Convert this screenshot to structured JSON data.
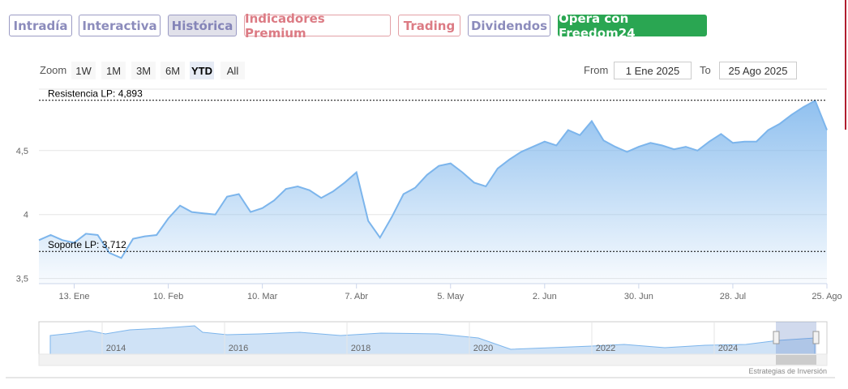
{
  "tabs": [
    "Intradía",
    "Interactiva",
    "Histórica",
    "Indicadores Premium",
    "Trading",
    "Dividendos",
    "Opera con Freedom24"
  ],
  "zoom": {
    "label": "Zoom",
    "buttons": [
      "1W",
      "1M",
      "3M",
      "6M",
      "YTD",
      "All"
    ],
    "selected": "YTD"
  },
  "range": {
    "from_label": "From",
    "from": "1 Ene 2025",
    "to_label": "To",
    "to": "25 Ago 2025"
  },
  "navigator": {
    "years": [
      "2014",
      "2016",
      "2018",
      "2020",
      "2022",
      "2024"
    ]
  },
  "credit": "Estrategias de Inversión",
  "chart_data": {
    "type": "area",
    "categories": [
      null,
      null,
      null,
      "13. Ene",
      null,
      null,
      null,
      null,
      null,
      null,
      null,
      "10. Feb",
      null,
      null,
      null,
      null,
      null,
      null,
      null,
      "10. Mar",
      null,
      null,
      null,
      null,
      null,
      null,
      null,
      "7. Abr",
      null,
      null,
      null,
      null,
      null,
      null,
      null,
      "5. May",
      null,
      null,
      null,
      null,
      null,
      null,
      null,
      "2. Jun",
      null,
      null,
      null,
      null,
      null,
      null,
      null,
      "30. Jun",
      null,
      null,
      null,
      null,
      null,
      null,
      null,
      "28. Jul",
      null,
      null,
      null,
      null,
      null,
      null,
      null,
      "25. Ago"
    ],
    "values": [
      3.8,
      3.84,
      3.8,
      3.78,
      3.85,
      3.84,
      3.7,
      3.66,
      3.81,
      3.83,
      3.84,
      3.97,
      4.07,
      4.02,
      4.01,
      4.0,
      4.14,
      4.16,
      4.02,
      4.05,
      4.11,
      4.2,
      4.22,
      4.19,
      4.13,
      4.18,
      4.25,
      4.33,
      3.95,
      3.82,
      3.98,
      4.16,
      4.21,
      4.31,
      4.38,
      4.4,
      4.33,
      4.25,
      4.22,
      4.36,
      4.43,
      4.49,
      4.53,
      4.57,
      4.54,
      4.66,
      4.62,
      4.73,
      4.58,
      4.53,
      4.49,
      4.53,
      4.56,
      4.54,
      4.51,
      4.53,
      4.5,
      4.57,
      4.63,
      4.56,
      4.57,
      4.57,
      4.66,
      4.71,
      4.78,
      4.84,
      4.89,
      4.66
    ],
    "color": "#7cb5ec",
    "ylim": [
      3.46,
      4.98
    ],
    "yticks": [
      {
        "value": 3.5,
        "label": "3,5"
      },
      {
        "value": 4,
        "label": "4"
      },
      {
        "value": 4.5,
        "label": "4,5"
      }
    ],
    "grid": true,
    "annotations": [
      {
        "label": "Resistencia LP: 4,893",
        "value": 4.893
      },
      {
        "label": "Soporte LP: 3,712",
        "value": 3.712
      }
    ]
  }
}
